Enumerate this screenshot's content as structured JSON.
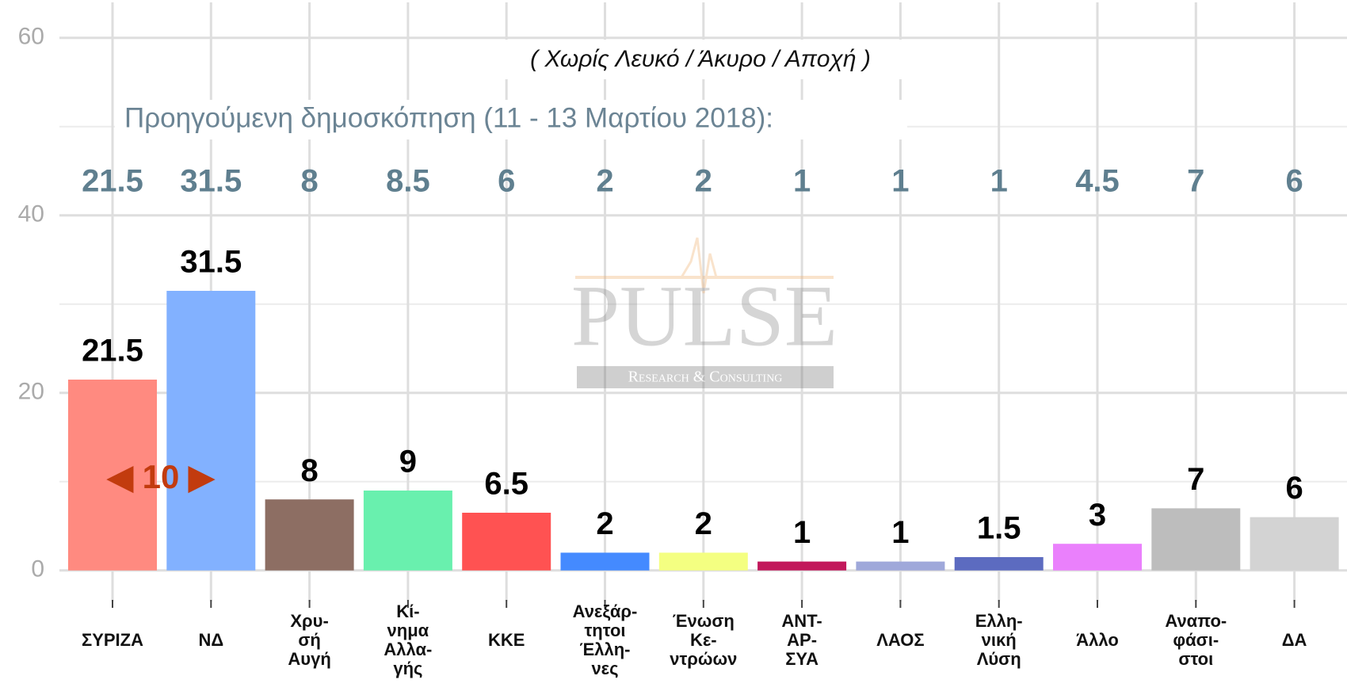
{
  "chart_data": {
    "type": "bar",
    "subtitle": "( Χωρίς Λευκό / Άκυρο / Απoχή )",
    "previous_label": "Προηγούμενη δημοσκόπηση (11 - 13 Μαρτίου 2018):",
    "categories": [
      "ΣΥΡΙΖΑ",
      "ΝΔ",
      "Χρυ-\nσή\nΑυγή",
      "Κί-\nνημα\nΑλλα-\nγής",
      "ΚΚΕ",
      "Ανεξάρ-\nτητοι\nΈλλη-\nνες",
      "Ένωση\nΚε-\nντρώων",
      "ΑΝΤ-\nΑΡ-\nΣΥΑ",
      "ΛΑΟΣ",
      "Ελλη-\nνική\nΛύση",
      "Άλλο",
      "Αναπο-\nφάσι-\nστοι",
      "ΔΑ"
    ],
    "values": [
      21.5,
      31.5,
      8,
      9,
      6.5,
      2,
      2,
      1,
      1,
      1.5,
      3,
      7,
      6
    ],
    "previous_values": [
      21.5,
      31.5,
      8,
      8.5,
      6,
      2,
      2,
      1,
      1,
      1,
      4.5,
      7,
      6
    ],
    "colors": [
      "#ff8a80",
      "#82b1ff",
      "#8d6e63",
      "#69f0ae",
      "#ff5252",
      "#448aff",
      "#f4ff81",
      "#c2185b",
      "#9fa8da",
      "#5c6bc0",
      "#ea80fc",
      "#bdbdbd",
      "#d3d3d3"
    ],
    "lead": {
      "value": 10,
      "label": "◀ 10 ▶"
    },
    "watermark": {
      "name": "PULSE",
      "tagline": "Research & Consulting"
    },
    "ylim": [
      -3.5,
      64
    ],
    "yticks": [
      0,
      20,
      40,
      60
    ],
    "minor_yticks": [
      10,
      30,
      50
    ],
    "grid": true
  }
}
